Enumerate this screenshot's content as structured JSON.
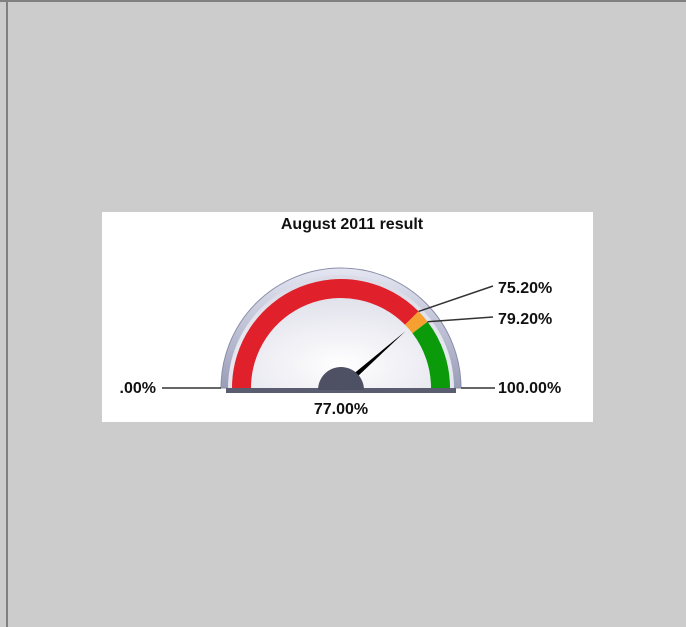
{
  "chart_data": {
    "type": "gauge",
    "title": "August 2011 result",
    "values": [
      77
    ],
    "value_labels": [
      "77.00%"
    ],
    "ylim": [
      0,
      100
    ],
    "yticks": [
      {
        "value": 0,
        "label": ".00%"
      },
      {
        "value": 75.2,
        "label": "75.20%"
      },
      {
        "value": 79.2,
        "label": "79.20%"
      },
      {
        "value": 100,
        "label": "100.00%"
      }
    ],
    "bands": [
      {
        "from": 0,
        "to": 75.2,
        "color": "#e0202a"
      },
      {
        "from": 75.2,
        "to": 79.2,
        "color": "#f5a030"
      },
      {
        "from": 79.2,
        "to": 100,
        "color": "#0a9a0a"
      }
    ],
    "needle_color": "#000000"
  }
}
